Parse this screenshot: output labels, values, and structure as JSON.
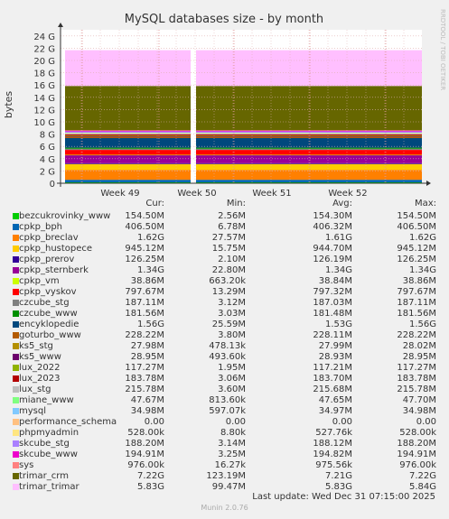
{
  "title": "MySQL databases size - by month",
  "watermark": "RRDTOOL / TOBI OETIKER",
  "chart_data": {
    "type": "area",
    "title": "MySQL databases size - by month",
    "ylabel": "bytes",
    "y_ticks": [
      "0",
      "2 G",
      "4 G",
      "6 G",
      "8 G",
      "10 G",
      "12 G",
      "14 G",
      "16 G",
      "18 G",
      "20 G",
      "22 G",
      "24 G"
    ],
    "ylim": [
      0,
      25
    ],
    "x_ticks": [
      "Week 49",
      "Week 50",
      "Week 51",
      "Week 52"
    ],
    "grid": true,
    "stacked": true,
    "gap_at": "Week 50",
    "stack_values_G": [
      0.1545,
      0.4065,
      1.62,
      0.945,
      0.126,
      1.34,
      0.039,
      0.798,
      0.187,
      0.182,
      1.56,
      0.228,
      0.028,
      0.029,
      0.117,
      0.184,
      0.216,
      0.048,
      0.035,
      0.0,
      0.0005,
      0.188,
      0.195,
      0.001,
      7.22,
      5.83
    ]
  },
  "legend": {
    "headers": [
      "Cur:",
      "Min:",
      "Avg:",
      "Max:"
    ],
    "rows": [
      {
        "name": "bezcukrovinky_www",
        "color": "#00cc00",
        "cur": "154.50M",
        "min": "2.56M",
        "avg": "154.30M",
        "max": "154.50M"
      },
      {
        "name": "cpkp_bph",
        "color": "#0066b3",
        "cur": "406.50M",
        "min": "6.78M",
        "avg": "406.32M",
        "max": "406.50M"
      },
      {
        "name": "cpkp_breclav",
        "color": "#ff8000",
        "cur": "1.62G",
        "min": "27.57M",
        "avg": "1.61G",
        "max": "1.62G"
      },
      {
        "name": "cpkp_hustopece",
        "color": "#ffcc00",
        "cur": "945.12M",
        "min": "15.75M",
        "avg": "944.70M",
        "max": "945.12M"
      },
      {
        "name": "cpkp_prerov",
        "color": "#330099",
        "cur": "126.25M",
        "min": "2.10M",
        "avg": "126.19M",
        "max": "126.25M"
      },
      {
        "name": "cpkp_sternberk",
        "color": "#990099",
        "cur": "1.34G",
        "min": "22.80M",
        "avg": "1.34G",
        "max": "1.34G"
      },
      {
        "name": "cpkp_vm",
        "color": "#ccff00",
        "cur": "38.86M",
        "min": "663.20k",
        "avg": "38.84M",
        "max": "38.86M"
      },
      {
        "name": "cpkp_vyskov",
        "color": "#ff0000",
        "cur": "797.67M",
        "min": "13.29M",
        "avg": "797.32M",
        "max": "797.67M"
      },
      {
        "name": "czcube_stg",
        "color": "#808080",
        "cur": "187.11M",
        "min": "3.12M",
        "avg": "187.03M",
        "max": "187.11M"
      },
      {
        "name": "czcube_www",
        "color": "#008f00",
        "cur": "181.56M",
        "min": "3.03M",
        "avg": "181.48M",
        "max": "181.56M"
      },
      {
        "name": "encyklopedie",
        "color": "#00487d",
        "cur": "1.56G",
        "min": "25.59M",
        "avg": "1.53G",
        "max": "1.56G"
      },
      {
        "name": "goturbo_www",
        "color": "#b35a00",
        "cur": "228.22M",
        "min": "3.80M",
        "avg": "228.11M",
        "max": "228.22M"
      },
      {
        "name": "ks5_stg",
        "color": "#b38f00",
        "cur": "27.98M",
        "min": "478.13k",
        "avg": "27.99M",
        "max": "28.02M"
      },
      {
        "name": "ks5_www",
        "color": "#6b006b",
        "cur": "28.95M",
        "min": "493.60k",
        "avg": "28.93M",
        "max": "28.95M"
      },
      {
        "name": "lux_2022",
        "color": "#8fb300",
        "cur": "117.27M",
        "min": "1.95M",
        "avg": "117.21M",
        "max": "117.27M"
      },
      {
        "name": "lux_2023",
        "color": "#b30000",
        "cur": "183.78M",
        "min": "3.06M",
        "avg": "183.70M",
        "max": "183.78M"
      },
      {
        "name": "lux_stg",
        "color": "#bebebe",
        "cur": "215.78M",
        "min": "3.60M",
        "avg": "215.68M",
        "max": "215.78M"
      },
      {
        "name": "miane_www",
        "color": "#80ff80",
        "cur": "47.67M",
        "min": "813.60k",
        "avg": "47.65M",
        "max": "47.70M"
      },
      {
        "name": "mysql",
        "color": "#80c9ff",
        "cur": "34.98M",
        "min": "597.07k",
        "avg": "34.97M",
        "max": "34.98M"
      },
      {
        "name": "performance_schema",
        "color": "#ffc080",
        "cur": "0.00",
        "min": "0.00",
        "avg": "0.00",
        "max": "0.00"
      },
      {
        "name": "phpmyadmin",
        "color": "#ffe680",
        "cur": "528.00k",
        "min": "8.80k",
        "avg": "527.76k",
        "max": "528.00k"
      },
      {
        "name": "skcube_stg",
        "color": "#aa80ff",
        "cur": "188.20M",
        "min": "3.14M",
        "avg": "188.12M",
        "max": "188.20M"
      },
      {
        "name": "skcube_www",
        "color": "#ee00cc",
        "cur": "194.91M",
        "min": "3.25M",
        "avg": "194.82M",
        "max": "194.91M"
      },
      {
        "name": "sys",
        "color": "#ff8080",
        "cur": "976.00k",
        "min": "16.27k",
        "avg": "975.56k",
        "max": "976.00k"
      },
      {
        "name": "trimar_crm",
        "color": "#666600",
        "cur": "7.22G",
        "min": "123.19M",
        "avg": "7.21G",
        "max": "7.22G"
      },
      {
        "name": "trimar_trimar",
        "color": "#ffbfff",
        "cur": "5.83G",
        "min": "99.47M",
        "avg": "5.83G",
        "max": "5.84G"
      }
    ]
  },
  "footer": {
    "last_update": "Last update: Wed Dec 31 07:15:00 2025",
    "munin": "Munin 2.0.76"
  }
}
